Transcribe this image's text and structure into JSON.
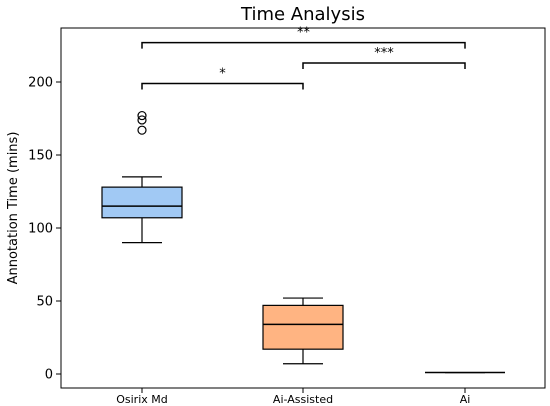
{
  "chart_data": {
    "type": "box",
    "title": "Time Analysis",
    "xlabel": "",
    "ylabel": "Annotation Time (mins)",
    "ylim": [
      -12,
      227
    ],
    "yticks": [
      0,
      50,
      100,
      150,
      200
    ],
    "grid": false,
    "categories": [
      "Osirix Md",
      "Ai-Assisted",
      "Ai"
    ],
    "boxes": [
      {
        "category": "Osirix Md",
        "whisker_low": 90,
        "q1": 107,
        "median": 115,
        "q3": 128,
        "whisker_high": 135,
        "outliers": [
          167,
          174,
          177
        ],
        "color": "#a1c9f4"
      },
      {
        "category": "Ai-Assisted",
        "whisker_low": 7,
        "q1": 17,
        "median": 34,
        "q3": 47,
        "whisker_high": 52,
        "outliers": [],
        "color": "#ffb482"
      },
      {
        "category": "Ai",
        "whisker_low": 1,
        "q1": 1,
        "median": 1,
        "q3": 1,
        "whisker_high": 1,
        "outliers": [],
        "color": "#8de5a1"
      }
    ],
    "significance": [
      {
        "from": "Osirix Md",
        "to": "Ai-Assisted",
        "y": 199,
        "label": "*"
      },
      {
        "from": "Ai-Assisted",
        "to": "Ai",
        "y": 213,
        "label": "***"
      },
      {
        "from": "Osirix Md",
        "to": "Ai",
        "y": 227,
        "label": "**"
      }
    ]
  }
}
